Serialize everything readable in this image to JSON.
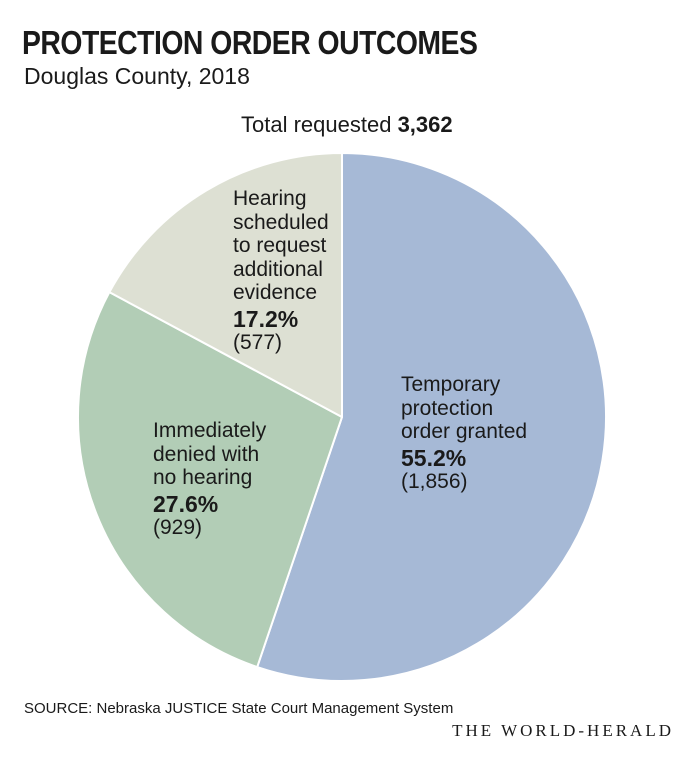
{
  "header": {
    "title": "PROTECTION ORDER OUTCOMES",
    "subtitle": "Douglas County, 2018",
    "total_label": "Total requested",
    "total_value": "3,362"
  },
  "chart_data": {
    "type": "pie",
    "title": "PROTECTION ORDER OUTCOMES",
    "subtitle": "Douglas County, 2018",
    "total": 3362,
    "slices": [
      {
        "name": "Temporary protection order granted",
        "label_lines": [
          "Temporary",
          "protection",
          "order granted"
        ],
        "percent": 55.2,
        "percent_label": "55.2%",
        "count": 1856,
        "count_label": "(1,856)",
        "color": "#a6b9d6"
      },
      {
        "name": "Immediately denied with no hearing",
        "label_lines": [
          "Immediately",
          "denied with",
          "no hearing"
        ],
        "percent": 27.6,
        "percent_label": "27.6%",
        "count": 929,
        "count_label": "(929)",
        "color": "#b2cdb6"
      },
      {
        "name": "Hearing scheduled to request additional evidence",
        "label_lines": [
          "Hearing",
          "scheduled",
          "to request",
          "additional",
          "evidence"
        ],
        "percent": 17.2,
        "percent_label": "17.2%",
        "count": 577,
        "count_label": "(577)",
        "color": "#dde0d3"
      }
    ],
    "start": "12 o'clock",
    "direction": "clockwise",
    "legend": "none"
  },
  "footer": {
    "source": "SOURCE: Nebraska JUSTICE State Court Management System",
    "credit": "THE WORLD-HERALD"
  }
}
